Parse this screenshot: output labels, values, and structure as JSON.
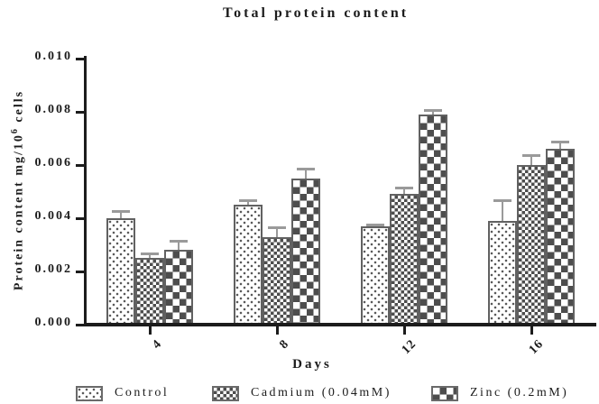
{
  "title": "Total protein content",
  "chart_data": {
    "type": "bar",
    "title": "Total protein content",
    "xlabel": "Days",
    "ylabel": "Protein content mg/10^6 cells",
    "ylabel_parts": {
      "main": "Protein content mg/10",
      "sup": "6",
      "end": " cells"
    },
    "categories": [
      "4",
      "8",
      "12",
      "16"
    ],
    "series": [
      {
        "name": "Control",
        "pattern": "dots",
        "values": [
          0.004,
          0.0045,
          0.0037,
          0.0039
        ],
        "errors": [
          0.0003,
          0.0002,
          0.0001,
          0.0008
        ]
      },
      {
        "name": "Cadmium (0.04mM)",
        "pattern": "fine-checker",
        "values": [
          0.0025,
          0.0033,
          0.0049,
          0.006
        ],
        "errors": [
          0.0002,
          0.0004,
          0.0003,
          0.0004
        ]
      },
      {
        "name": "Zinc (0.2mM)",
        "pattern": "coarse-checker",
        "values": [
          0.0028,
          0.0055,
          0.0079,
          0.0066
        ],
        "errors": [
          0.0004,
          0.0004,
          0.0002,
          0.0003
        ]
      }
    ],
    "ylim": [
      0,
      0.01
    ],
    "yticks": [
      {
        "value": 0.0,
        "label": "0.000"
      },
      {
        "value": 0.002,
        "label": "0.002"
      },
      {
        "value": 0.004,
        "label": "0.004"
      },
      {
        "value": 0.006,
        "label": "0.006"
      },
      {
        "value": 0.008,
        "label": "0.008"
      },
      {
        "value": 0.01,
        "label": "0.010"
      }
    ],
    "grid": false,
    "error_bars": "upper",
    "legend_position": "bottom",
    "colors": {
      "background": "#ffffff",
      "text": "#1c1c1c",
      "axis": "#1c1c1c",
      "pattern": "#4d4d4d",
      "bar_border": "#616161",
      "error_bar": "#9a9a9a"
    }
  }
}
